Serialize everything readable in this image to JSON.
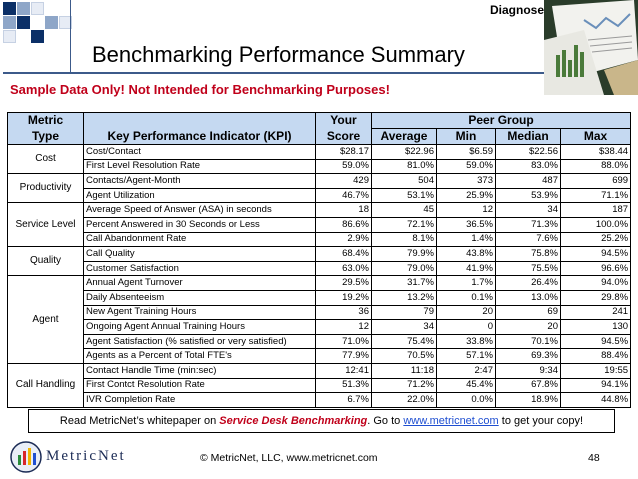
{
  "header": {
    "section_label": "Diagnose",
    "title": "Benchmarking Performance Summary",
    "subtitle": "Sample Data Only!  Not Intended for Benchmarking Purposes!"
  },
  "table": {
    "headers": {
      "metric_line1": "Metric",
      "metric_line2": "Type",
      "kpi": "Key Performance Indicator (KPI)",
      "your_line1": "Your",
      "your_line2": "Score",
      "peer_group": "Peer Group",
      "average": "Average",
      "min": "Min",
      "median": "Median",
      "max": "Max"
    },
    "rows": [
      {
        "type": "Cost",
        "span": 2,
        "kpi": "Cost/Contact",
        "score": "$28.17",
        "average": "$22.96",
        "min": "$6.59",
        "median": "$22.56",
        "max": "$38.44"
      },
      {
        "kpi": "First Level Resolution Rate",
        "score": "59.0%",
        "average": "81.0%",
        "min": "59.0%",
        "median": "83.0%",
        "max": "88.0%"
      },
      {
        "type": "Productivity",
        "span": 2,
        "kpi": "Contacts/Agent-Month",
        "score": "429",
        "average": "504",
        "min": "373",
        "median": "487",
        "max": "699"
      },
      {
        "kpi": "Agent Utilization",
        "score": "46.7%",
        "average": "53.1%",
        "min": "25.9%",
        "median": "53.9%",
        "max": "71.1%"
      },
      {
        "type": "Service Level",
        "span": 3,
        "kpi": "Average Speed of Answer (ASA) in seconds",
        "score": "18",
        "average": "45",
        "min": "12",
        "median": "34",
        "max": "187"
      },
      {
        "kpi": "Percent Answered in 30 Seconds or Less",
        "score": "86.6%",
        "average": "72.1%",
        "min": "36.5%",
        "median": "71.3%",
        "max": "100.0%"
      },
      {
        "kpi": "Call Abandonment Rate",
        "score": "2.9%",
        "average": "8.1%",
        "min": "1.4%",
        "median": "7.6%",
        "max": "25.2%"
      },
      {
        "type": "Quality",
        "span": 2,
        "kpi": "Call Quality",
        "score": "68.4%",
        "average": "79.9%",
        "min": "43.8%",
        "median": "75.8%",
        "max": "94.5%"
      },
      {
        "kpi": "Customer Satisfaction",
        "score": "63.0%",
        "average": "79.0%",
        "min": "41.9%",
        "median": "75.5%",
        "max": "96.6%"
      },
      {
        "type": "Agent",
        "span": 6,
        "kpi": "Annual Agent Turnover",
        "score": "29.5%",
        "average": "31.7%",
        "min": "1.7%",
        "median": "26.4%",
        "max": "94.0%"
      },
      {
        "kpi": "Daily Absenteeism",
        "score": "19.2%",
        "average": "13.2%",
        "min": "0.1%",
        "median": "13.0%",
        "max": "29.8%"
      },
      {
        "kpi": "New Agent Training Hours",
        "score": "36",
        "average": "79",
        "min": "20",
        "median": "69",
        "max": "241"
      },
      {
        "kpi": "Ongoing Agent Annual Training Hours",
        "score": "12",
        "average": "34",
        "min": "0",
        "median": "20",
        "max": "130"
      },
      {
        "kpi": "Agent Satisfaction (% satisfied or very satisfied)",
        "score": "71.0%",
        "average": "75.4%",
        "min": "33.8%",
        "median": "70.1%",
        "max": "94.5%"
      },
      {
        "kpi": "Agents as a Percent of Total FTE's",
        "score": "77.9%",
        "average": "70.5%",
        "min": "57.1%",
        "median": "69.3%",
        "max": "88.4%"
      },
      {
        "type": "Call Handling",
        "span": 3,
        "kpi": "Contact Handle Time (min:sec)",
        "score": "12:41",
        "average": "11:18",
        "min": "2:47",
        "median": "9:34",
        "max": "19:55"
      },
      {
        "kpi": "First Contct Resolution Rate",
        "score": "51.3%",
        "average": "71.2%",
        "min": "45.4%",
        "median": "67.8%",
        "max": "94.1%"
      },
      {
        "kpi": "IVR Completion Rate",
        "score": "6.7%",
        "average": "22.0%",
        "min": "0.0%",
        "median": "18.9%",
        "max": "44.8%"
      }
    ]
  },
  "banner": {
    "prefix": "Read MetricNet’s whitepaper on ",
    "whitepaper": "Service Desk Benchmarking",
    "middle": ".  Go to ",
    "link": "www.metricnet.com",
    "suffix": " to get your copy!"
  },
  "footer": {
    "logo_text": "MetricNet",
    "copyright": "© MetricNet, LLC, www.metricnet.com",
    "page_number": "48"
  },
  "colors": {
    "header_fill": "#c5d9f1",
    "subtitle_red": "#c0001a",
    "accent_navy": "#0b2f67",
    "link_blue": "#1f4fd1"
  }
}
